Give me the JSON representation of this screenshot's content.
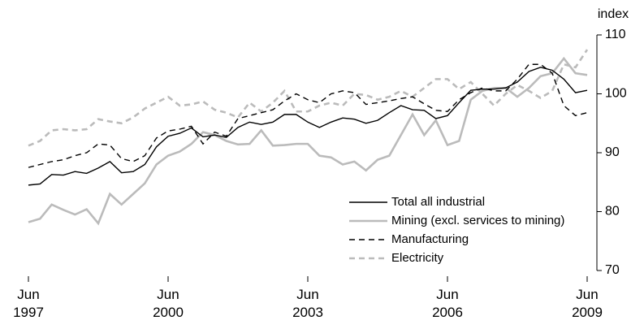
{
  "chart_data": {
    "type": "line",
    "y_axis_label": "index",
    "categories": [
      "Jun 1997",
      null,
      null,
      null,
      null,
      null,
      null,
      null,
      null,
      null,
      null,
      null,
      "Jun 2000",
      null,
      null,
      null,
      null,
      null,
      null,
      null,
      null,
      null,
      null,
      null,
      "Jun 2003",
      null,
      null,
      null,
      null,
      null,
      null,
      null,
      null,
      null,
      null,
      null,
      "Jun 2006",
      null,
      null,
      null,
      null,
      null,
      null,
      null,
      null,
      null,
      null,
      null,
      "Jun 2009"
    ],
    "ylim": [
      70,
      110
    ],
    "yticks": [
      70,
      80,
      90,
      100,
      110
    ],
    "grid": false,
    "legend": "lower right",
    "series": [
      {
        "name": "Total all industrial",
        "color": "#000000",
        "dash": "solid",
        "values": [
          84.5,
          84.7,
          86.3,
          86.2,
          86.8,
          86.5,
          87.4,
          88.5,
          86.6,
          86.8,
          88,
          91,
          92.8,
          93.3,
          94.2,
          92.7,
          93,
          92.6,
          94.3,
          95.2,
          94.8,
          95.2,
          96.5,
          96.5,
          95.2,
          94.3,
          95.2,
          95.9,
          95.7,
          95,
          95.5,
          96.8,
          98,
          97.3,
          97.2,
          95.8,
          96.3,
          98.5,
          100.6,
          100.8,
          100.8,
          101,
          102,
          103.8,
          104.5,
          104,
          102.5,
          100.2,
          100.6
        ]
      },
      {
        "name": "Mining (excl. services to mining)",
        "color": "#bbbbbb",
        "dash": "solid",
        "values": [
          78.2,
          78.8,
          81.2,
          80.3,
          79.5,
          80.4,
          78,
          83,
          81.2,
          83,
          84.8,
          88,
          89.5,
          90.2,
          91.5,
          93.5,
          93,
          92,
          91.4,
          91.5,
          93.8,
          91.2,
          91.3,
          91.5,
          91.5,
          89.5,
          89.2,
          88,
          88.5,
          87,
          88.8,
          89.5,
          93,
          96.5,
          93,
          95.5,
          91.3,
          92,
          99,
          100.5,
          101,
          101,
          99.5,
          101,
          103,
          103.5,
          106,
          103.5,
          103.2
        ]
      },
      {
        "name": "Manufacturing",
        "color": "#000000",
        "dash": "dashed",
        "values": [
          87.5,
          88,
          88.5,
          88.8,
          89.5,
          90,
          91.5,
          91.3,
          89,
          88.5,
          89.5,
          92.5,
          93.7,
          94,
          94.5,
          91.5,
          93.5,
          92.8,
          95.8,
          96.3,
          96.8,
          97.3,
          98.8,
          100,
          99,
          98.5,
          100,
          100.5,
          100.2,
          98.2,
          98.5,
          98.8,
          99.2,
          99.5,
          98.3,
          97.2,
          97,
          99,
          100.2,
          101,
          100.5,
          100.5,
          102.5,
          105,
          105,
          103.5,
          98,
          96.3,
          96.8
        ]
      },
      {
        "name": "Electricity",
        "color": "#bbbbbb",
        "dash": "dashed",
        "values": [
          91.2,
          92,
          93.8,
          94,
          93.8,
          94,
          95.7,
          95.3,
          95,
          96,
          97.5,
          98.5,
          99.5,
          98,
          98.2,
          98.7,
          97.3,
          96.8,
          96,
          98.5,
          97,
          98.5,
          100.5,
          97,
          97,
          98,
          98.5,
          98,
          100,
          99.8,
          99,
          99.5,
          100.5,
          99.5,
          101,
          102.5,
          102.5,
          100.8,
          102,
          100,
          98,
          100,
          101.5,
          100.5,
          99.3,
          100.5,
          105,
          104.5,
          107.5
        ]
      }
    ]
  }
}
